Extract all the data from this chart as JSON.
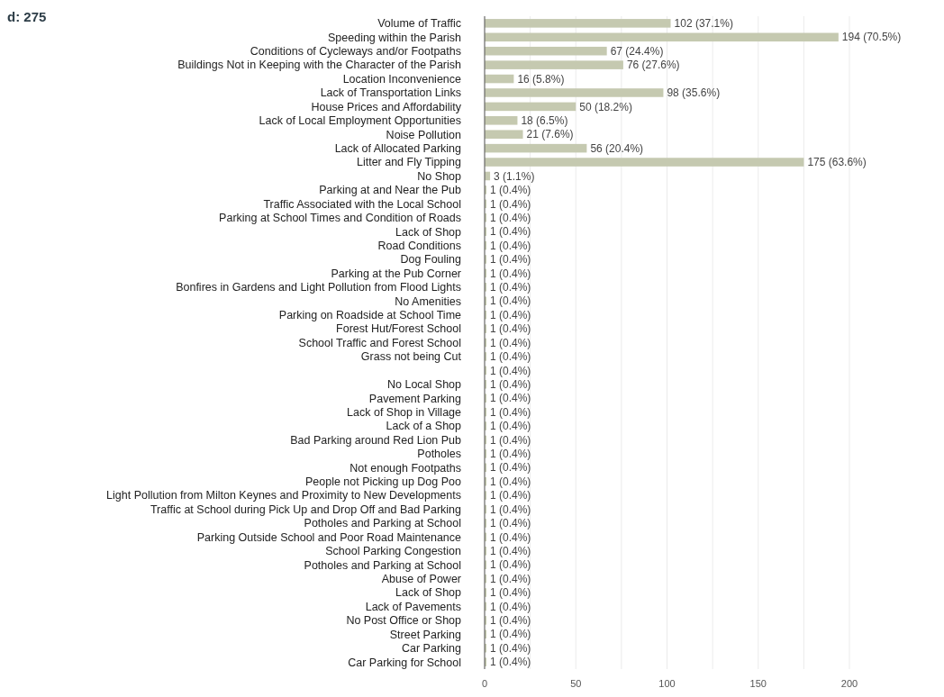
{
  "chart_data": {
    "type": "bar",
    "orientation": "horizontal",
    "title": "d: 275",
    "categories": [
      "Volume of Traffic",
      "Speeding within the Parish",
      "Conditions of Cycleways and/or Footpaths",
      "Buildings Not in Keeping with the Character of the Parish",
      "Location Inconvenience",
      "Lack of Transportation Links",
      "House Prices and Affordability",
      "Lack of Local Employment Opportunities",
      "Noise Pollution",
      "Lack of Allocated Parking",
      "Litter and Fly Tipping",
      "No Shop",
      "Parking at and Near the Pub",
      "Traffic Associated with the Local School",
      "Parking at School Times and Condition of Roads",
      "Lack of Shop",
      "Road Conditions",
      "Dog Fouling",
      "Parking at the Pub Corner",
      "Bonfires in Gardens and Light Pollution from Flood Lights",
      "No Amenities",
      "Parking on Roadside at School Time",
      "Forest Hut/Forest School",
      "School Traffic and Forest School",
      "Grass not being Cut",
      null,
      "No Local Shop",
      "Pavement Parking",
      "Lack of Shop in Village",
      "Lack of a Shop",
      "Bad Parking around Red Lion Pub",
      "Potholes",
      "Not enough Footpaths",
      "People not Picking up Dog Poo",
      "Light Pollution from Milton Keynes and Proximity to New Developments",
      "Traffic at School during Pick Up and Drop Off and Bad Parking",
      "Potholes and Parking at School",
      "Parking Outside School and Poor Road Maintenance",
      "School Parking Congestion",
      "Potholes and Parking at School",
      "Abuse of Power",
      "Lack of Shop",
      "Lack of Pavements",
      "No Post Office or Shop",
      "Street Parking",
      "Car Parking",
      "Car Parking for School"
    ],
    "values": [
      102,
      194,
      67,
      76,
      16,
      98,
      50,
      18,
      21,
      56,
      175,
      3,
      1,
      1,
      1,
      1,
      1,
      1,
      1,
      1,
      1,
      1,
      1,
      1,
      1,
      1,
      1,
      1,
      1,
      1,
      1,
      1,
      1,
      1,
      1,
      1,
      1,
      1,
      1,
      1,
      1,
      1,
      1,
      1,
      1,
      1,
      1
    ],
    "value_labels": [
      "102 (37.1%)",
      "194 (70.5%)",
      "67 (24.4%)",
      "76 (27.6%)",
      "16 (5.8%)",
      "98 (35.6%)",
      "50 (18.2%)",
      "18 (6.5%)",
      "21 (7.6%)",
      "56 (20.4%)",
      "175 (63.6%)",
      "3 (1.1%)",
      "1 (0.4%)",
      "1 (0.4%)",
      "1 (0.4%)",
      "1 (0.4%)",
      "1 (0.4%)",
      "1 (0.4%)",
      "1 (0.4%)",
      "1 (0.4%)",
      "1 (0.4%)",
      "1 (0.4%)",
      "1 (0.4%)",
      "1 (0.4%)",
      "1 (0.4%)",
      "1 (0.4%)",
      "1 (0.4%)",
      "1 (0.4%)",
      "1 (0.4%)",
      "1 (0.4%)",
      "1 (0.4%)",
      "1 (0.4%)",
      "1 (0.4%)",
      "1 (0.4%)",
      "1 (0.4%)",
      "1 (0.4%)",
      "1 (0.4%)",
      "1 (0.4%)",
      "1 (0.4%)",
      "1 (0.4%)",
      "1 (0.4%)",
      "1 (0.4%)",
      "1 (0.4%)",
      "1 (0.4%)",
      "1 (0.4%)",
      "1 (0.4%)",
      "1 (0.4%)"
    ],
    "color": "#c5c9b0",
    "xlim": [
      0,
      200
    ],
    "xticks": [
      0,
      {
        "value": 25,
        "label": null
      },
      50,
      {
        "value": 75,
        "label": null
      },
      100,
      {
        "value": 125,
        "label": null
      },
      150,
      {
        "value": 175,
        "label": null
      },
      200
    ],
    "grid": "x"
  }
}
